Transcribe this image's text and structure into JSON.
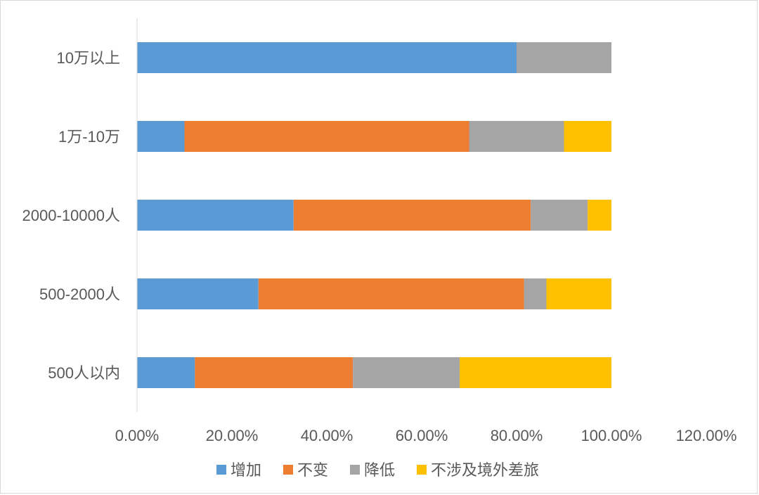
{
  "chart_data": {
    "type": "bar",
    "orientation": "horizontal",
    "stacked": true,
    "title": "",
    "xlabel": "",
    "ylabel": "",
    "xlim": [
      0,
      120
    ],
    "x_ticks": [
      "0.00%",
      "20.00%",
      "40.00%",
      "60.00%",
      "80.00%",
      "100.00%",
      "120.00%"
    ],
    "x_tick_values": [
      0,
      20,
      40,
      60,
      80,
      100,
      120
    ],
    "grid": false,
    "legend_position": "bottom",
    "categories": [
      "10万以上",
      "1万-10万",
      "2000-10000人",
      "500-2000人",
      "500人以内"
    ],
    "series": [
      {
        "name": "增加",
        "color": "#5B9BD5",
        "values": [
          80.0,
          10.0,
          33.0,
          25.6,
          12.2
        ]
      },
      {
        "name": "不变",
        "color": "#ED7D31",
        "values": [
          0.0,
          60.0,
          50.0,
          56.0,
          33.3
        ]
      },
      {
        "name": "降低",
        "color": "#A5A5A5",
        "values": [
          20.0,
          20.0,
          12.0,
          4.7,
          22.5
        ]
      },
      {
        "name": "不涉及境外差旅",
        "color": "#FFC000",
        "values": [
          0.0,
          10.0,
          5.0,
          13.7,
          32.0
        ]
      }
    ]
  }
}
